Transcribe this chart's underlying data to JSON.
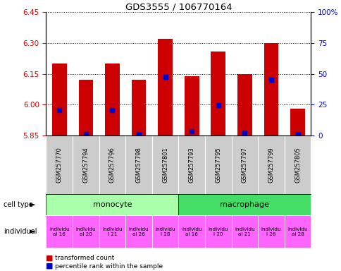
{
  "title": "GDS3555 / 106770164",
  "samples": [
    "GSM257770",
    "GSM257794",
    "GSM257796",
    "GSM257798",
    "GSM257801",
    "GSM257793",
    "GSM257795",
    "GSM257797",
    "GSM257799",
    "GSM257805"
  ],
  "bar_tops": [
    6.2,
    6.12,
    6.2,
    6.12,
    6.32,
    6.14,
    6.26,
    6.15,
    6.3,
    5.98
  ],
  "bar_bottoms": [
    5.85,
    5.85,
    5.85,
    5.85,
    5.85,
    5.85,
    5.85,
    5.85,
    5.85,
    5.85
  ],
  "blue_values": [
    5.975,
    5.858,
    5.975,
    5.858,
    6.135,
    5.872,
    5.998,
    5.864,
    6.122,
    5.856
  ],
  "ylim_left": [
    5.85,
    6.45
  ],
  "ylim_right": [
    0,
    100
  ],
  "yticks_left": [
    5.85,
    6.0,
    6.15,
    6.3,
    6.45
  ],
  "yticks_right": [
    0,
    25,
    50,
    75,
    100
  ],
  "bar_color": "#cc0000",
  "blue_color": "#0000cc",
  "cell_types": [
    "monocyte",
    "macrophage"
  ],
  "cell_type_spans": [
    5,
    5
  ],
  "cell_type_colors": [
    "#aaffaa",
    "#44dd66"
  ],
  "individual_labels": [
    "individu\nal 16",
    "individu\nal 20",
    "individu\nl 21",
    "individu\nal 26",
    "individu\nl 28",
    "individu\nal 16",
    "individu\nl 20",
    "individu\nal 21",
    "individu\nl 26",
    "individu\nal 28"
  ],
  "individual_color": "#ff66ff",
  "xlabel_color": "#cc0000",
  "ylabel_right_color": "#0000cc",
  "sample_label_bg": "#cccccc"
}
